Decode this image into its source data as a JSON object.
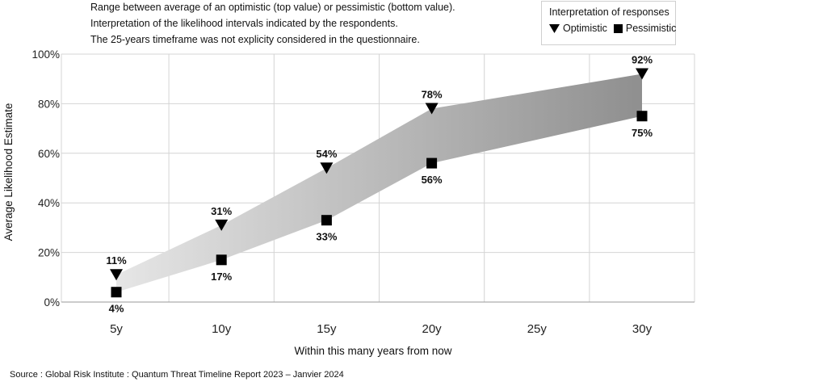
{
  "notes": {
    "line1": "Range between average of an optimistic (top value) or pessimistic (bottom value).",
    "line2": "Interpretation of the likelihood intervals indicated by the respondents.",
    "line3": "The 25-years timeframe was not explicity considered in the questionnaire."
  },
  "legend": {
    "title": "Interpretation of responses",
    "optimistic": "Optimistic",
    "pessimistic": "Pessimistic"
  },
  "source": "Source : Global Risk Institute : Quantum Threat Timeline Report 2023 – Janvier 2024",
  "chart_data": {
    "type": "area",
    "title": "",
    "xlabel": "Within this many years from now",
    "ylabel": "Average Likelihood Estimate",
    "categories": [
      "5y",
      "10y",
      "15y",
      "20y",
      "25y",
      "30y"
    ],
    "x": [
      5,
      10,
      15,
      20,
      25,
      30
    ],
    "ylim": [
      0,
      100
    ],
    "yticks": [
      "0%",
      "20%",
      "40%",
      "60%",
      "80%",
      "100%"
    ],
    "grid": true,
    "legend_position": "top-right",
    "series": [
      {
        "name": "Optimistic",
        "marker": "triangle-down",
        "x": [
          5,
          10,
          15,
          20,
          30
        ],
        "values": [
          11,
          31,
          54,
          78,
          92
        ],
        "labels": [
          "11%",
          "31%",
          "54%",
          "78%",
          "92%"
        ]
      },
      {
        "name": "Pessimistic",
        "marker": "square",
        "x": [
          5,
          10,
          15,
          20,
          30
        ],
        "values": [
          4,
          17,
          33,
          56,
          75
        ],
        "labels": [
          "4%",
          "17%",
          "33%",
          "56%",
          "75%"
        ]
      }
    ],
    "colors": {
      "band_start": "#e6e6e6",
      "band_end": "#8f8f8f",
      "marker": "#000000",
      "grid": "#d4d4d4"
    }
  }
}
